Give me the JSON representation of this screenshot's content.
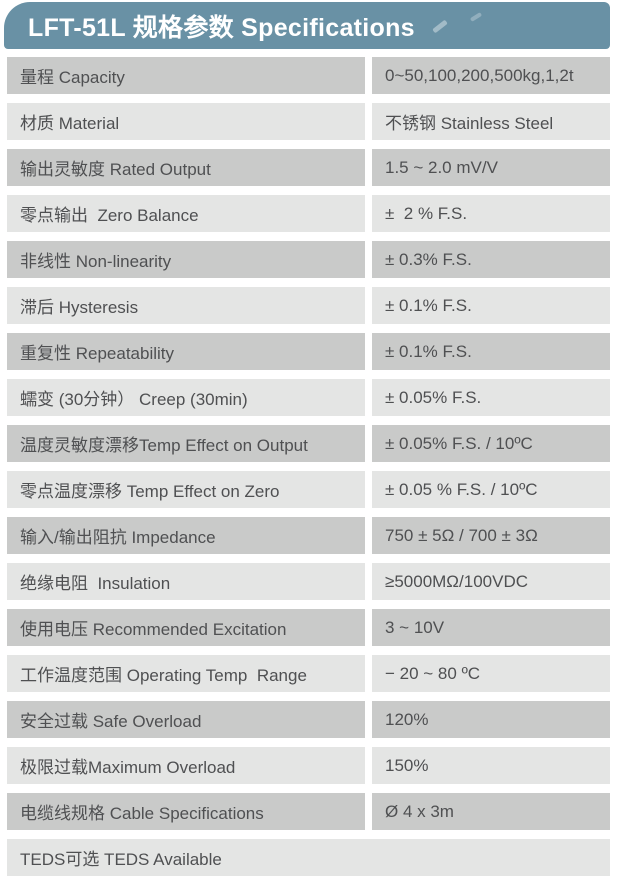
{
  "header": {
    "title": "LFT-51L 规格参数 Specifications"
  },
  "colors": {
    "header_bg": "#6991a5",
    "header_text": "#ffffff",
    "row_dark": "#c9cac9",
    "row_light": "#e4e5e4",
    "text": "#4f5052",
    "page_bg": "#ffffff"
  },
  "table": {
    "rows": [
      {
        "label": "量程 Capacity",
        "value": "0~50,100,200,500kg,1,2t"
      },
      {
        "label": "材质 Material",
        "value": "不锈钢 Stainless Steel"
      },
      {
        "label": "输出灵敏度 Rated Output",
        "value": "1.5 ~ 2.0 mV/V"
      },
      {
        "label": "零点输出  Zero Balance",
        "value": "±  2 % F.S."
      },
      {
        "label": "非线性 Non-linearity",
        "value": "± 0.3% F.S."
      },
      {
        "label": "滞后 Hysteresis",
        "value": "± 0.1% F.S."
      },
      {
        "label": "重复性 Repeatability",
        "value": "± 0.1% F.S."
      },
      {
        "label": "蠕变 (30分钟） Creep (30min)",
        "value": "± 0.05% F.S."
      },
      {
        "label": "温度灵敏度漂移Temp Effect on Output",
        "value": "± 0.05% F.S. / 10ºC"
      },
      {
        "label": "零点温度漂移 Temp Effect on Zero",
        "value": "± 0.05 % F.S. / 10ºC"
      },
      {
        "label": "输入/输出阻抗 Impedance",
        "value": "750 ± 5Ω / 700 ± 3Ω"
      },
      {
        "label": "绝缘电阻  Insulation",
        "value": "≥5000MΩ/100VDC"
      },
      {
        "label": "使用电压 Recommended Excitation",
        "value": "3 ~ 10V"
      },
      {
        "label": "工作温度范围 Operating Temp  Range",
        "value": "− 20 ~ 80 ºC"
      },
      {
        "label": "安全过载 Safe Overload",
        "value": "120%"
      },
      {
        "label": "极限过载Maximum Overload",
        "value": "150%"
      },
      {
        "label": "电缆线规格 Cable Specifications",
        "value": "Ø 4 x 3m"
      },
      {
        "label": "TEDS可选 TEDS Available",
        "value": "",
        "full": true
      }
    ]
  }
}
